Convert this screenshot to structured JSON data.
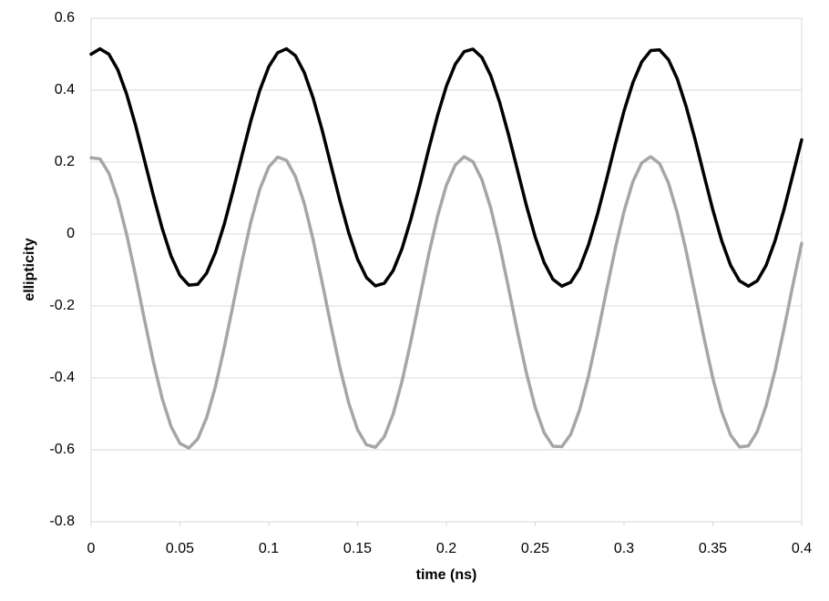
{
  "chart_data": {
    "type": "line",
    "x_label": "time (ns)",
    "y_label": "ellipticity",
    "x": [
      0,
      0.005,
      0.01,
      0.015,
      0.02,
      0.025,
      0.03,
      0.035,
      0.04,
      0.045,
      0.05,
      0.055,
      0.06,
      0.065,
      0.07,
      0.075,
      0.08,
      0.085,
      0.09,
      0.095,
      0.1,
      0.105,
      0.11,
      0.115,
      0.12,
      0.125,
      0.13,
      0.135,
      0.14,
      0.145,
      0.15,
      0.155,
      0.16,
      0.165,
      0.17,
      0.175,
      0.18,
      0.185,
      0.19,
      0.195,
      0.2,
      0.205,
      0.21,
      0.215,
      0.22,
      0.225,
      0.23,
      0.235,
      0.24,
      0.245,
      0.25,
      0.255,
      0.26,
      0.265,
      0.27,
      0.275,
      0.28,
      0.285,
      0.29,
      0.295,
      0.3,
      0.305,
      0.31,
      0.315,
      0.32,
      0.325,
      0.33,
      0.335,
      0.34,
      0.345,
      0.35,
      0.355,
      0.36,
      0.365,
      0.37,
      0.375,
      0.38,
      0.385,
      0.39,
      0.395,
      0.4
    ],
    "series": [
      {
        "color": "#000000",
        "values": [
          0.5,
          0.515,
          0.5,
          0.457,
          0.389,
          0.303,
          0.206,
          0.108,
          0.016,
          -0.061,
          -0.115,
          -0.142,
          -0.14,
          -0.109,
          -0.051,
          0.028,
          0.122,
          0.22,
          0.316,
          0.4,
          0.465,
          0.504,
          0.515,
          0.496,
          0.449,
          0.378,
          0.29,
          0.192,
          0.094,
          0.004,
          -0.07,
          -0.121,
          -0.144,
          -0.137,
          -0.102,
          -0.041,
          0.041,
          0.135,
          0.235,
          0.329,
          0.411,
          0.472,
          0.507,
          0.514,
          0.491,
          0.44,
          0.366,
          0.276,
          0.178,
          0.08,
          -0.008,
          -0.079,
          -0.126,
          -0.145,
          -0.134,
          -0.095,
          -0.03,
          0.054,
          0.149,
          0.248,
          0.342,
          0.421,
          0.479,
          0.51,
          0.512,
          0.485,
          0.431,
          0.354,
          0.263,
          0.164,
          0.067,
          -0.019,
          -0.087,
          -0.13,
          -0.145,
          -0.13,
          -0.087,
          -0.019,
          0.067,
          0.164,
          0.262
        ]
      },
      {
        "color": "#a6a6a6",
        "values": [
          0.212,
          0.209,
          0.169,
          0.097,
          -0.001,
          -0.115,
          -0.237,
          -0.354,
          -0.457,
          -0.535,
          -0.582,
          -0.595,
          -0.57,
          -0.511,
          -0.424,
          -0.315,
          -0.195,
          -0.075,
          0.035,
          0.125,
          0.186,
          0.214,
          0.205,
          0.16,
          0.085,
          -0.016,
          -0.133,
          -0.254,
          -0.37,
          -0.469,
          -0.544,
          -0.586,
          -0.593,
          -0.564,
          -0.501,
          -0.41,
          -0.299,
          -0.178,
          -0.058,
          0.049,
          0.136,
          0.192,
          0.215,
          0.201,
          0.151,
          0.072,
          -0.032,
          -0.15,
          -0.271,
          -0.385,
          -0.482,
          -0.552,
          -0.59,
          -0.591,
          -0.557,
          -0.489,
          -0.395,
          -0.282,
          -0.16,
          -0.042,
          0.063,
          0.146,
          0.198,
          0.215,
          0.196,
          0.142,
          0.058,
          -0.048,
          -0.167,
          -0.288,
          -0.401,
          -0.494,
          -0.559,
          -0.592,
          -0.589,
          -0.549,
          -0.477,
          -0.38,
          -0.265,
          -0.143,
          -0.026
        ]
      }
    ],
    "xlim": [
      0,
      0.4
    ],
    "xticks": [
      0,
      0.05,
      0.1,
      0.15,
      0.2,
      0.25,
      0.3,
      0.35,
      0.4
    ],
    "ylim": [
      -0.8,
      0.6
    ],
    "yticks": [
      -0.8,
      -0.6,
      -0.4,
      -0.2,
      0,
      0.2,
      0.4,
      0.6
    ],
    "grid": true
  }
}
